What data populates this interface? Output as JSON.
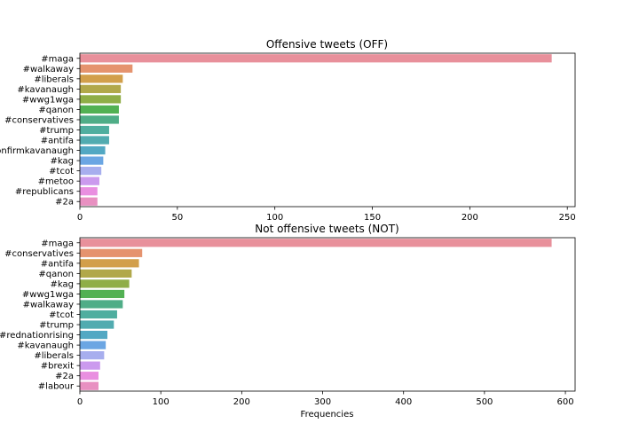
{
  "chart_data": [
    {
      "type": "bar",
      "orientation": "horizontal",
      "title": "Offensive tweets (OFF)",
      "xlabel": "",
      "ylabel": "",
      "xlim": [
        0,
        254
      ],
      "xticks": [
        0,
        50,
        100,
        150,
        200,
        250
      ],
      "categories": [
        "#maga",
        "#walkaway",
        "#liberals",
        "#kavanaugh",
        "#wwg1wga",
        "#qanon",
        "#conservatives",
        "#trump",
        "#antifa",
        "#confirmkavanaugh",
        "#kag",
        "#tcot",
        "#metoo",
        "#republicans",
        "#2a"
      ],
      "values": [
        242,
        27,
        22,
        21,
        21,
        20,
        20,
        15,
        15,
        13,
        12,
        11,
        10,
        9,
        9
      ],
      "grid": false,
      "legend": "none"
    },
    {
      "type": "bar",
      "orientation": "horizontal",
      "title": "Not offensive tweets  (NOT)",
      "xlabel": "Frequencies",
      "ylabel": "",
      "xlim": [
        0,
        612
      ],
      "xticks": [
        0,
        100,
        200,
        300,
        400,
        500,
        600
      ],
      "categories": [
        "#maga",
        "#conservatives",
        "#antifa",
        "#qanon",
        "#kag",
        "#wwg1wga",
        "#walkaway",
        "#tcot",
        "#trump",
        "#rednationrising",
        "#kavanaugh",
        "#liberals",
        "#brexit",
        "#2a",
        "#labour"
      ],
      "values": [
        583,
        77,
        73,
        64,
        61,
        55,
        53,
        46,
        42,
        34,
        32,
        30,
        25,
        23,
        23
      ],
      "grid": false,
      "legend": "none"
    }
  ],
  "colors": [
    "#e8909b",
    "#e5936e",
    "#d29f4b",
    "#b1a84a",
    "#8fae47",
    "#52b153",
    "#4fad87",
    "#4fae9f",
    "#51abb0",
    "#52a8c3",
    "#6ba6e3",
    "#a7aeee",
    "#cb9aee",
    "#e98fe0",
    "#e890c1"
  ]
}
